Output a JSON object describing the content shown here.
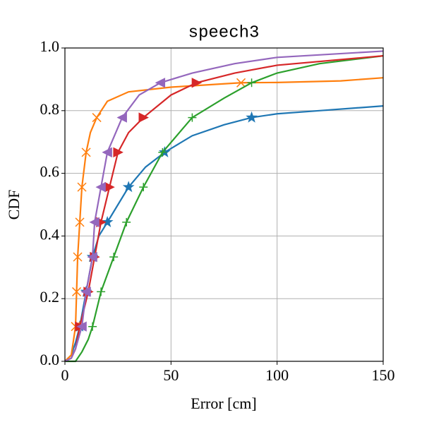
{
  "chart_data": {
    "type": "line",
    "title": "speech3",
    "xlabel": "Error [cm]",
    "ylabel": "CDF",
    "xlim": [
      0,
      150
    ],
    "ylim": [
      0,
      1
    ],
    "xticks": [
      0,
      50,
      100,
      150
    ],
    "yticks": [
      {
        "value": 0,
        "label": "0.0"
      },
      0.2,
      0.4,
      0.6,
      0.8,
      {
        "value": 1,
        "label": "1.0"
      }
    ],
    "grid": true,
    "series": [
      {
        "color": "#1f77b4",
        "marker": "*",
        "x": [
          0,
          3,
          5,
          7,
          10,
          13,
          16,
          20,
          25,
          30,
          38,
          47,
          60,
          75,
          88,
          100,
          120,
          150
        ],
        "values": [
          0,
          0.02,
          0.06,
          0.111,
          0.222,
          0.333,
          0.4,
          0.444,
          0.5,
          0.556,
          0.62,
          0.667,
          0.72,
          0.755,
          0.778,
          0.79,
          0.8,
          0.815
        ],
        "markers": {
          "x": [
            7,
            10,
            13,
            20,
            30,
            47,
            88
          ],
          "values": [
            0.111,
            0.222,
            0.333,
            0.444,
            0.556,
            0.667,
            0.778
          ]
        }
      },
      {
        "color": "#ff7f0e",
        "marker": "x",
        "x": [
          0,
          3,
          5,
          5.5,
          6,
          7,
          8,
          10,
          12,
          15,
          20,
          30,
          50,
          83,
          100,
          130,
          150
        ],
        "values": [
          0,
          0.02,
          0.111,
          0.222,
          0.333,
          0.444,
          0.556,
          0.667,
          0.73,
          0.778,
          0.83,
          0.86,
          0.875,
          0.889,
          0.89,
          0.895,
          0.905
        ],
        "markers": {
          "x": [
            5,
            5.5,
            6,
            7,
            8,
            10,
            15,
            83
          ],
          "values": [
            0.111,
            0.222,
            0.333,
            0.444,
            0.556,
            0.667,
            0.778,
            0.889
          ]
        }
      },
      {
        "color": "#2ca02c",
        "marker": "+",
        "x": [
          0,
          5,
          8,
          11,
          13,
          17,
          23,
          29,
          37,
          46,
          60,
          75,
          88,
          100,
          120,
          150
        ],
        "values": [
          0,
          0,
          0.03,
          0.07,
          0.111,
          0.222,
          0.333,
          0.444,
          0.556,
          0.667,
          0.778,
          0.84,
          0.889,
          0.92,
          0.95,
          0.975
        ],
        "markers": {
          "x": [
            13,
            17,
            23,
            29,
            37,
            46,
            60,
            88
          ],
          "values": [
            0.111,
            0.222,
            0.333,
            0.444,
            0.556,
            0.667,
            0.778,
            0.889
          ]
        }
      },
      {
        "color": "#d62728",
        "marker": ">",
        "x": [
          0,
          3,
          5,
          7,
          11,
          14,
          17,
          21,
          25,
          30,
          37,
          50,
          62,
          80,
          100,
          150
        ],
        "values": [
          0,
          0.01,
          0.04,
          0.111,
          0.222,
          0.333,
          0.444,
          0.556,
          0.667,
          0.73,
          0.778,
          0.85,
          0.889,
          0.92,
          0.945,
          0.975
        ],
        "markers": {
          "x": [
            7,
            11,
            14,
            17,
            21,
            25,
            37,
            62
          ],
          "values": [
            0.111,
            0.222,
            0.333,
            0.444,
            0.556,
            0.667,
            0.778,
            0.889
          ]
        }
      },
      {
        "color": "#9467bd",
        "marker": "<",
        "x": [
          0,
          3,
          5,
          8,
          10,
          13,
          14,
          17,
          20,
          27,
          35,
          45,
          60,
          80,
          100,
          150
        ],
        "values": [
          0,
          0.01,
          0.04,
          0.111,
          0.222,
          0.333,
          0.444,
          0.556,
          0.667,
          0.778,
          0.85,
          0.889,
          0.92,
          0.95,
          0.97,
          0.99
        ],
        "markers": {
          "x": [
            8,
            10,
            13,
            14,
            17,
            20,
            27,
            45
          ],
          "values": [
            0.111,
            0.222,
            0.333,
            0.444,
            0.556,
            0.667,
            0.778,
            0.889
          ]
        }
      }
    ]
  }
}
